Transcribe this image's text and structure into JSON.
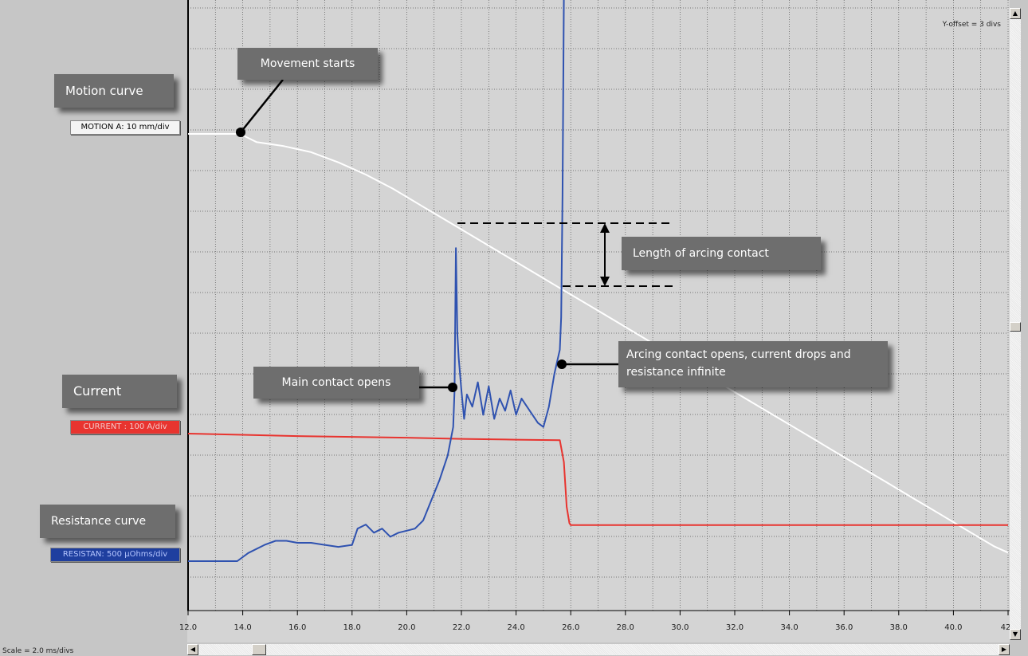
{
  "chart_data": {
    "type": "line",
    "x_ticks": [
      "12.0",
      "14.0",
      "16.0",
      "18.0",
      "20.0",
      "22.0",
      "24.0",
      "26.0",
      "28.0",
      "30.0",
      "32.0",
      "34.0",
      "36.0",
      "38.0",
      "40.0",
      "42"
    ],
    "xlim": [
      12.0,
      42.0
    ],
    "grid": true,
    "channels": {
      "motion": "MOTION A: 10 mm/div",
      "current": "CURRENT : 100 A/div",
      "resistance": "RESISTAN: 500 µOhms/div"
    },
    "series": [
      {
        "name": "MOTION A: 10 mm/div",
        "color": "#ffffff",
        "x": [
          12.0,
          13.9,
          14.5,
          15.5,
          16.5,
          17.5,
          18.5,
          19.5,
          20.5,
          21.5,
          22.5,
          23.5,
          24.5,
          25.5,
          26.5,
          27.5,
          28.5,
          29.5,
          30.5,
          31.5,
          32.5,
          33.5,
          34.5,
          35.5,
          36.5,
          37.5,
          38.5,
          39.5,
          40.5,
          41.5,
          42.0
        ],
        "y": [
          0,
          0,
          -0.2,
          -0.3,
          -0.45,
          -0.7,
          -1.0,
          -1.35,
          -1.75,
          -2.15,
          -2.55,
          -2.95,
          -3.35,
          -3.75,
          -4.15,
          -4.55,
          -4.95,
          -5.35,
          -5.75,
          -6.15,
          -6.55,
          -6.95,
          -7.35,
          -7.75,
          -8.15,
          -8.55,
          -8.95,
          -9.35,
          -9.75,
          -10.15,
          -10.3
        ]
      },
      {
        "name": "CURRENT : 100 A/div",
        "color": "#e8342f",
        "x": [
          12.0,
          14.0,
          16.0,
          18.0,
          20.0,
          22.0,
          24.0,
          25.6,
          25.75,
          25.85,
          25.95,
          26.0,
          30.0,
          34.0,
          38.0,
          42.0
        ],
        "y": [
          0,
          -0.03,
          -0.06,
          -0.08,
          -0.1,
          -0.13,
          -0.15,
          -0.16,
          -0.7,
          -1.8,
          -2.2,
          -2.25,
          -2.25,
          -2.25,
          -2.25,
          -2.25
        ]
      },
      {
        "name": "RESISTAN: 500 µOhms/div",
        "color": "#2f52b0",
        "x": [
          12.0,
          13.8,
          14.2,
          14.8,
          15.2,
          15.6,
          16.0,
          16.5,
          17.0,
          17.5,
          18.0,
          18.2,
          18.5,
          18.8,
          19.1,
          19.4,
          19.7,
          20.0,
          20.3,
          20.6,
          20.9,
          21.2,
          21.5,
          21.7,
          21.75,
          21.8,
          21.85,
          21.9,
          22.0,
          22.1,
          22.2,
          22.4,
          22.6,
          22.8,
          23.0,
          23.2,
          23.4,
          23.6,
          23.8,
          24.0,
          24.2,
          24.4,
          24.6,
          24.8,
          25.0,
          25.2,
          25.4,
          25.5,
          25.6,
          25.65,
          25.7,
          25.75
        ],
        "y": [
          0,
          0,
          0.2,
          0.4,
          0.5,
          0.5,
          0.45,
          0.45,
          0.4,
          0.35,
          0.4,
          0.8,
          0.9,
          0.7,
          0.8,
          0.6,
          0.7,
          0.75,
          0.8,
          1.0,
          1.5,
          2.0,
          2.6,
          3.3,
          4.2,
          7.7,
          5.6,
          5.0,
          4.2,
          3.5,
          4.1,
          3.8,
          4.4,
          3.6,
          4.3,
          3.5,
          4.0,
          3.7,
          4.2,
          3.6,
          4.0,
          3.8,
          3.6,
          3.4,
          3.3,
          3.8,
          4.6,
          4.9,
          5.2,
          6.0,
          9.0,
          14.0
        ]
      }
    ]
  },
  "callouts": {
    "motion_curve": "Motion curve",
    "current": "Current",
    "resistance_curve": "Resistance curve",
    "movement_starts": "Movement starts",
    "main_contact_opens": "Main contact opens",
    "length_of_arcing": "Length of arcing contact",
    "arcing_opens": "Arcing contact opens, current drops and resistance infinite"
  },
  "y_offset": "Y-offset = 3 divs",
  "scale": "Scale = 2.0 ms/divs",
  "scroll_icons": {
    "up": "▲",
    "down": "▼",
    "left": "◀",
    "right": "▶"
  },
  "colors": {
    "plot_bg": "#d4d4d4",
    "grid": "#555555",
    "callout_bg": "#6e6e6e"
  }
}
